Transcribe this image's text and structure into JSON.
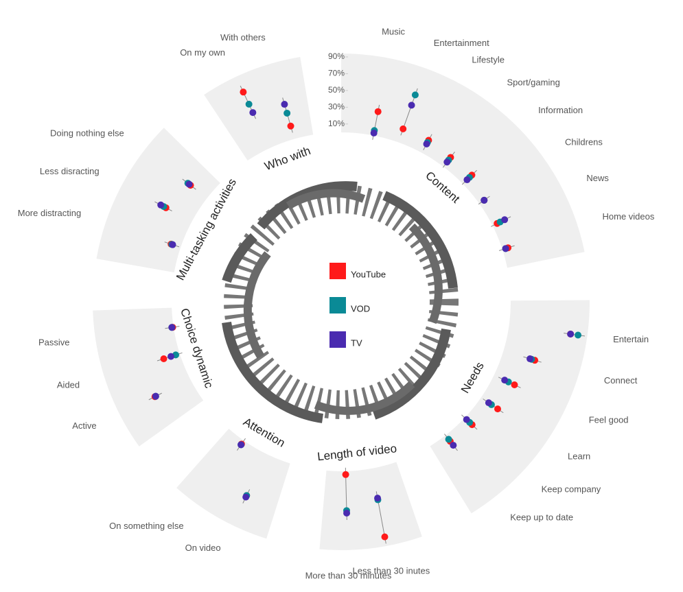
{
  "chart_data": {
    "type": "radial_dot",
    "rlim": [
      0,
      90
    ],
    "rticks": [
      {
        "value": 10,
        "label": "10%"
      },
      {
        "value": 30,
        "label": "30%"
      },
      {
        "value": 50,
        "label": "50%"
      },
      {
        "value": 70,
        "label": "70%"
      },
      {
        "value": 90,
        "label": "90%"
      }
    ],
    "groups": [
      {
        "name": "Content",
        "categories": [
          "Music",
          "Entertainment",
          "Lifestyle",
          "Sport/gaming",
          "Information",
          "Childrens",
          "News",
          "Home videos"
        ]
      },
      {
        "name": "Needs",
        "categories": [
          "Entertain",
          "Connect",
          "Feel good",
          "Learn",
          "Keep company",
          "Keep up to date"
        ]
      },
      {
        "name": "Length of video",
        "categories": [
          "Less than 30 inutes",
          "More than 30 minutes"
        ]
      },
      {
        "name": "Attention",
        "categories": [
          "On video",
          "On something else"
        ]
      },
      {
        "name": "Choice dynamic",
        "categories": [
          "Active",
          "Aided",
          "Passive"
        ]
      },
      {
        "name": "Multi-tasking activities",
        "categories": [
          "More distracting",
          "Less disracting",
          "Doing nothing else"
        ]
      },
      {
        "name": "Who with",
        "categories": [
          "On my own",
          "With others"
        ]
      }
    ],
    "series": [
      {
        "name": "YouTube",
        "color": "#ff1a1a",
        "values": [
          29,
          17,
          17,
          14,
          15,
          7,
          6,
          7,
          74,
          39,
          27,
          24,
          12,
          9,
          83,
          4,
          55,
          5,
          47,
          20,
          1,
          12,
          35,
          25,
          74,
          16
        ]
      },
      {
        "name": "VOD",
        "color": "#0a8a96",
        "values": [
          6,
          60,
          14,
          10,
          11,
          7,
          10,
          4,
          83,
          35,
          19,
          15,
          8,
          6,
          38,
          47,
          55,
          6,
          46,
          5,
          2,
          11,
          38,
          29,
          58,
          32
        ]
      },
      {
        "name": "TV",
        "color": "#4a2bb0",
        "values": [
          3,
          47,
          12,
          7,
          7,
          7,
          16,
          4,
          74,
          33,
          14,
          11,
          3,
          15,
          36,
          50,
          57,
          6,
          46,
          11,
          2,
          10,
          42,
          27,
          47,
          43
        ]
      }
    ]
  }
}
